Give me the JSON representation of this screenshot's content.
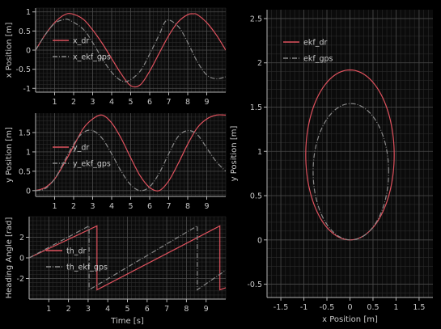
{
  "colors": {
    "background": "#000000",
    "plot_bg": "#0b0b0b",
    "axis": "#b4b4b4",
    "text": "#c8c8c8",
    "grid_major": "#4a4a4a",
    "grid_minor": "#2a2a2a",
    "dr": "#e0525e",
    "gps": "#8a8a8a"
  },
  "chart_data": [
    {
      "id": "x-plot",
      "type": "line",
      "title": "",
      "xlabel": "",
      "ylabel": "x Position [m]",
      "xlim": [
        0,
        10
      ],
      "ylim": [
        -1.1,
        1.1
      ],
      "xticks": [
        1,
        2,
        3,
        4,
        5,
        6,
        7,
        8,
        9
      ],
      "xtick_labels": [
        "1",
        "2",
        "3",
        "4",
        "5",
        "6",
        "7",
        "8",
        "9"
      ],
      "yticks": [
        -1,
        -0.5,
        0,
        0.5,
        1
      ],
      "ytick_labels": [
        "-1",
        "-0.5",
        "0",
        "0.5",
        "1"
      ],
      "grid": true,
      "legend_position": "top-left",
      "series": [
        {
          "name": "x_dr",
          "style": "solid",
          "color": "dr",
          "x": [
            0,
            0.5,
            1,
            1.5,
            1.9,
            2.5,
            3,
            3.5,
            4,
            4.5,
            5,
            5.5,
            6,
            6.5,
            7,
            7.5,
            8,
            8.3,
            8.5,
            9,
            9.5,
            10
          ],
          "y": [
            0,
            0.4,
            0.72,
            0.92,
            0.95,
            0.81,
            0.53,
            0.18,
            -0.22,
            -0.62,
            -0.93,
            -0.91,
            -0.55,
            -0.08,
            0.38,
            0.74,
            0.93,
            0.95,
            0.93,
            0.72,
            0.4,
            0
          ]
        },
        {
          "name": "x_ekf_gps",
          "style": "dashdot",
          "color": "gps",
          "x": [
            0,
            0.5,
            1,
            1.5,
            1.8,
            2.5,
            3,
            3.5,
            4,
            4.5,
            4.9,
            5.5,
            6,
            6.5,
            6.9,
            7.5,
            8,
            8.5,
            9,
            9.5,
            10
          ],
          "y": [
            0,
            0.4,
            0.7,
            0.8,
            0.78,
            0.55,
            0.2,
            -0.22,
            -0.58,
            -0.8,
            -0.8,
            -0.55,
            -0.1,
            0.4,
            0.78,
            0.62,
            0.2,
            -0.3,
            -0.65,
            -0.75,
            -0.7
          ]
        }
      ]
    },
    {
      "id": "y-plot",
      "type": "line",
      "title": "",
      "xlabel": "",
      "ylabel": "y Position [m]",
      "xlim": [
        0,
        10
      ],
      "ylim": [
        -0.15,
        2.0
      ],
      "xticks": [
        1,
        2,
        3,
        4,
        5,
        6,
        7,
        8,
        9
      ],
      "xtick_labels": [
        "1",
        "2",
        "3",
        "4",
        "5",
        "6",
        "7",
        "8",
        "9"
      ],
      "yticks": [
        0,
        0.5,
        1,
        1.5
      ],
      "ytick_labels": [
        "0",
        "0.5",
        "1",
        "1.5"
      ],
      "grid": true,
      "legend_position": "left",
      "series": [
        {
          "name": "y_dr",
          "style": "solid",
          "color": "dr",
          "x": [
            0,
            0.5,
            1,
            1.5,
            2,
            2.5,
            3,
            3.5,
            4,
            4.5,
            5,
            5.5,
            6,
            6.5,
            7,
            7.5,
            8,
            8.5,
            9,
            9.5,
            10
          ],
          "y": [
            0,
            0.08,
            0.3,
            0.7,
            1.15,
            1.6,
            1.85,
            1.95,
            1.75,
            1.35,
            0.85,
            0.38,
            0.08,
            0,
            0.25,
            0.7,
            1.2,
            1.62,
            1.85,
            1.95,
            1.95
          ]
        },
        {
          "name": "y_ekf_gps",
          "style": "dashdot",
          "color": "gps",
          "x": [
            0,
            0.5,
            1,
            1.5,
            2,
            2.5,
            3,
            3.5,
            4,
            4.5,
            5,
            5.5,
            6,
            6.5,
            7,
            7.5,
            8,
            8.5,
            9,
            9.5,
            10
          ],
          "y": [
            0,
            0.05,
            0.3,
            0.75,
            1.2,
            1.5,
            1.55,
            1.35,
            0.95,
            0.5,
            0.15,
            0,
            0.1,
            0.45,
            0.95,
            1.4,
            1.55,
            1.45,
            1.1,
            0.75,
            0.5
          ]
        }
      ]
    },
    {
      "id": "heading-plot",
      "type": "line",
      "title": "",
      "xlabel": "Time [s]",
      "ylabel": "Heading Angle [rad]",
      "xlim": [
        0,
        10
      ],
      "ylim": [
        -4,
        4
      ],
      "xticks": [
        1,
        2,
        3,
        4,
        5,
        6,
        7,
        8,
        9
      ],
      "xtick_labels": [
        "1",
        "2",
        "3",
        "4",
        "5",
        "6",
        "7",
        "8",
        "9"
      ],
      "yticks": [
        -2,
        0,
        2
      ],
      "ytick_labels": [
        "-2",
        "0",
        "2"
      ],
      "grid": true,
      "legend_position": "center-left",
      "series": [
        {
          "name": "th_dr",
          "style": "solid",
          "color": "dr",
          "x": [
            0,
            3.45,
            3.45,
            9.7,
            9.7,
            10
          ],
          "y": [
            0,
            3.1,
            -3.1,
            3.1,
            -3.1,
            -2.9
          ]
        },
        {
          "name": "th_ekf_gps",
          "style": "dashdot",
          "color": "gps",
          "x": [
            0,
            3.05,
            3.05,
            8.55,
            8.55,
            10
          ],
          "y": [
            0,
            3.1,
            -3.1,
            3.1,
            -3.1,
            -1.2
          ]
        }
      ]
    },
    {
      "id": "xy-plot",
      "type": "line",
      "title": "",
      "xlabel": "x Position [m]",
      "ylabel": "y Position [m]",
      "xlim": [
        -1.8,
        1.8
      ],
      "ylim": [
        -0.65,
        2.6
      ],
      "xticks": [
        -1.5,
        -1,
        -0.5,
        0,
        0.5,
        1,
        1.5
      ],
      "xtick_labels": [
        "-1.5",
        "-1",
        "-0.5",
        "0",
        "0.5",
        "1",
        "1.5"
      ],
      "yticks": [
        -0.5,
        0,
        0.5,
        1,
        1.5,
        2,
        2.5
      ],
      "ytick_labels": [
        "-0.5",
        "0",
        "0.5",
        "1",
        "1.5",
        "2",
        "2.5"
      ],
      "grid": true,
      "legend_position": "top-left",
      "series": [
        {
          "name": "ekf_dr",
          "style": "solid",
          "color": "dr",
          "shape": "ellipse",
          "center": [
            0,
            0.96
          ],
          "radii": [
            0.96,
            0.96
          ]
        },
        {
          "name": "ekf_gps",
          "style": "dashdot",
          "color": "gps",
          "shape": "ellipse",
          "center": [
            0.02,
            0.77
          ],
          "radii": [
            0.82,
            0.77
          ]
        }
      ]
    }
  ]
}
